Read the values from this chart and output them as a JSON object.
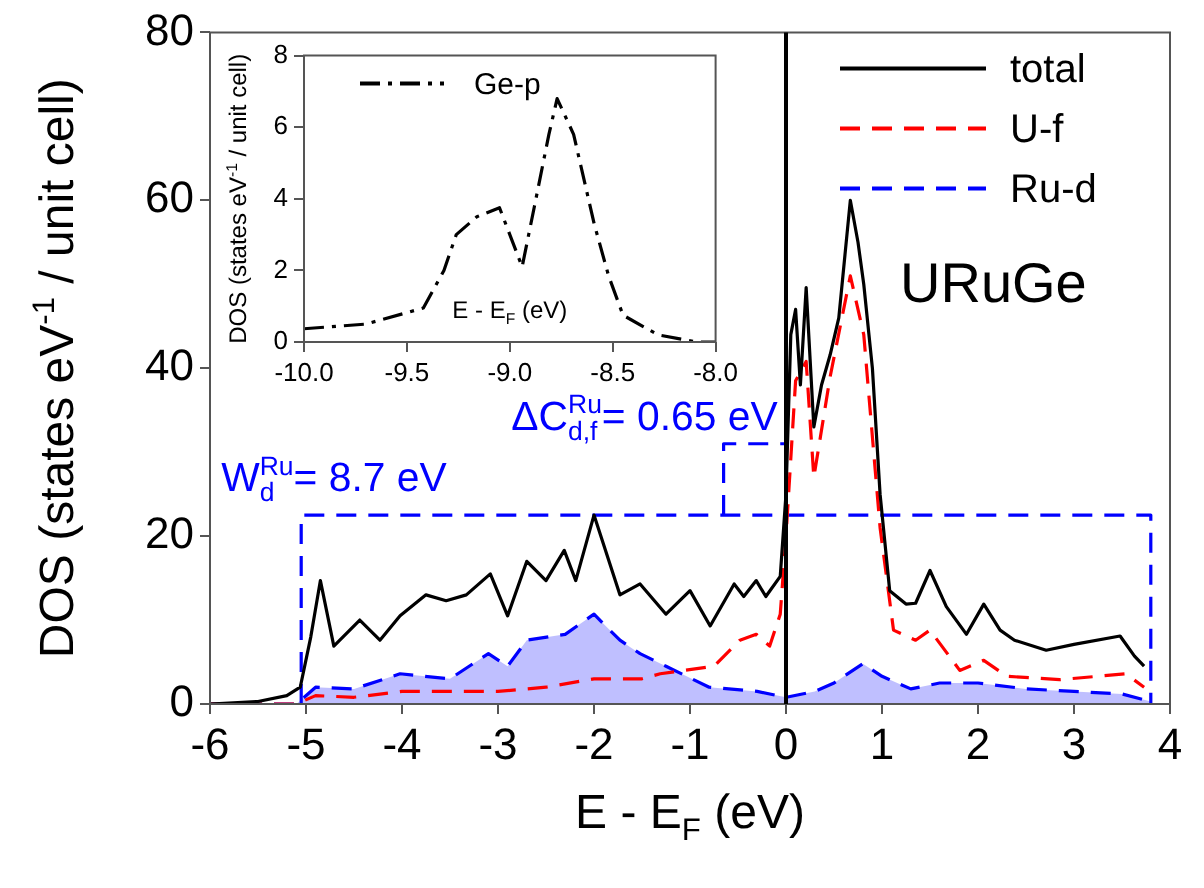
{
  "chart_data": [
    {
      "type": "line",
      "title": "URuGe",
      "xlabel": "E - E$_{F}$ (eV)",
      "ylabel": "DOS (states eV$^{-1}$ / unit cell)",
      "xlim": [
        -6,
        4
      ],
      "xticks": [
        -6,
        -5,
        -4,
        -3,
        -2,
        -1,
        0,
        1,
        2,
        3,
        4
      ],
      "ylim": [
        0,
        80
      ],
      "yticks": [
        0,
        20,
        40,
        60,
        80
      ],
      "grid": false,
      "legend": "top right",
      "marker": "none",
      "series": [
        {
          "name": "total",
          "color": "#000000",
          "line_style": "solid",
          "x": [
            -6,
            -5.5,
            -5.2,
            -5.06,
            -4.95,
            -4.85,
            -4.71,
            -4.44,
            -4.23,
            -4.02,
            -3.75,
            -3.54,
            -3.33,
            -3.08,
            -2.9,
            -2.7,
            -2.5,
            -2.31,
            -2.19,
            -2.0,
            -1.73,
            -1.52,
            -1.25,
            -1.0,
            -0.79,
            -0.54,
            -0.44,
            -0.31,
            -0.21,
            -0.06,
            0.0,
            0.05,
            0.1,
            0.15,
            0.21,
            0.29,
            0.37,
            0.46,
            0.55,
            0.67,
            0.75,
            0.81,
            0.9,
            0.98,
            1.08,
            1.25,
            1.35,
            1.5,
            1.67,
            1.88,
            2.06,
            2.23,
            2.38,
            2.71,
            3.0,
            3.48,
            3.63,
            3.73
          ],
          "values": [
            0,
            0.3,
            1,
            2,
            8,
            14.7,
            6.9,
            10,
            7.6,
            10.5,
            13,
            12.3,
            13,
            15.5,
            10.5,
            17,
            14.7,
            18.3,
            14.7,
            22.5,
            13,
            14.3,
            10.7,
            13.5,
            9.3,
            14.3,
            12.8,
            14.7,
            12.8,
            15.2,
            25,
            44,
            47,
            38,
            49.6,
            33,
            38,
            41.6,
            46,
            60,
            55,
            50,
            40,
            25,
            13.5,
            11.9,
            12,
            15.9,
            11.6,
            8.3,
            11.9,
            8.8,
            7.6,
            6.4,
            7.1,
            8.1,
            5.7,
            4.5
          ]
        },
        {
          "name": "U-f",
          "color": "#ff0000",
          "line_style": "dashed",
          "x": [
            -6,
            -5.1,
            -4.9,
            -4.5,
            -4,
            -3.5,
            -3,
            -2.5,
            -2,
            -1.5,
            -1.31,
            -0.75,
            -0.48,
            -0.31,
            -0.17,
            -0.06,
            0.0,
            0.1,
            0.21,
            0.29,
            0.46,
            0.67,
            0.81,
            0.98,
            1.12,
            1.35,
            1.5,
            1.81,
            2.06,
            2.3,
            2.85,
            3.54,
            3.73
          ],
          "values": [
            0,
            0,
            1,
            0.8,
            1.5,
            1.5,
            1.5,
            2,
            3,
            3,
            3.6,
            4.5,
            7.6,
            8.3,
            6.9,
            10.7,
            20,
            38.5,
            40.8,
            27,
            39,
            51,
            44,
            21,
            8.8,
            7.6,
            8.8,
            4,
            5.2,
            3.3,
            2.9,
            3.6,
            2
          ]
        },
        {
          "name": "Ru-d",
          "type": "area",
          "color": "#0000ff",
          "line_style": "dashed",
          "x": [
            -6,
            -5.1,
            -4.9,
            -4.5,
            -4.02,
            -3.5,
            -3.1,
            -2.9,
            -2.7,
            -2.3,
            -2.0,
            -1.73,
            -1.52,
            -1.25,
            -0.8,
            -0.3,
            0,
            0.3,
            0.5,
            0.8,
            1.0,
            1.3,
            1.6,
            2.0,
            2.5,
            3.0,
            3.5,
            3.8
          ],
          "values": [
            0,
            0,
            2,
            1.8,
            3.6,
            3,
            6,
            4.5,
            7.6,
            8.3,
            10.7,
            7.6,
            6,
            4.5,
            2,
            1.5,
            0.8,
            1.5,
            2.5,
            4.8,
            3.3,
            1.8,
            2.5,
            2.5,
            1.8,
            1.5,
            1.2,
            0.3
          ]
        },
        {
          "color": "#0000ff",
          "line_style": "dashed",
          "x": [
            -5.05,
            -5.05,
            3.8,
            3.8
          ],
          "values": [
            0,
            22.5,
            22.5,
            0
          ]
        },
        {
          "color": "#0000ff",
          "line_style": "dashed",
          "x": [
            -0.65,
            -0.65,
            0
          ],
          "values": [
            22.5,
            31,
            31
          ]
        }
      ],
      "ref_lines": [
        {
          "axis": "x",
          "value": 0,
          "color": "#000000"
        }
      ],
      "annotations": [
        {
          "text": "W$_{d}$$^{Ru}$= 8.7 eV",
          "x": -5.05,
          "y": 22.5
        },
        {
          "text": "ΔC$_{d,f}$$^{Ru}$= 0.65 eV",
          "x": -0.65,
          "y": 31
        }
      ]
    },
    {
      "type": "line",
      "xlabel": "E - E$_{F}$ (eV)",
      "ylabel": "DOS (states eV$^{-1}$ / unit cell)",
      "xlim": [
        -10,
        -8
      ],
      "xticks": [
        {
          "value": -10,
          "label": "-10.0"
        },
        {
          "value": -9.5,
          "label": "-9.5"
        },
        {
          "value": -9,
          "label": "-9.0"
        },
        {
          "value": -8.5,
          "label": "-8.5"
        },
        {
          "value": -8,
          "label": "-8.0"
        }
      ],
      "ylim": [
        0,
        8
      ],
      "yticks": [
        0,
        2,
        4,
        6,
        8
      ],
      "grid": false,
      "legend": "top left",
      "marker": "none",
      "series": [
        {
          "name": "Ge-p",
          "color": "#000000",
          "line_style": "dashdot",
          "x": [
            -10,
            -9.7,
            -9.42,
            -9.32,
            -9.26,
            -9.16,
            -9.05,
            -9.0,
            -8.94,
            -8.88,
            -8.81,
            -8.77,
            -8.69,
            -8.59,
            -8.52,
            -8.45,
            -8.28,
            -8.09,
            -8.0
          ],
          "values": [
            0.37,
            0.5,
            0.95,
            2.0,
            3.0,
            3.5,
            3.75,
            3.0,
            2.1,
            3.8,
            5.8,
            6.8,
            5.8,
            3.3,
            1.85,
            0.75,
            0.2,
            0,
            0
          ]
        }
      ]
    }
  ]
}
